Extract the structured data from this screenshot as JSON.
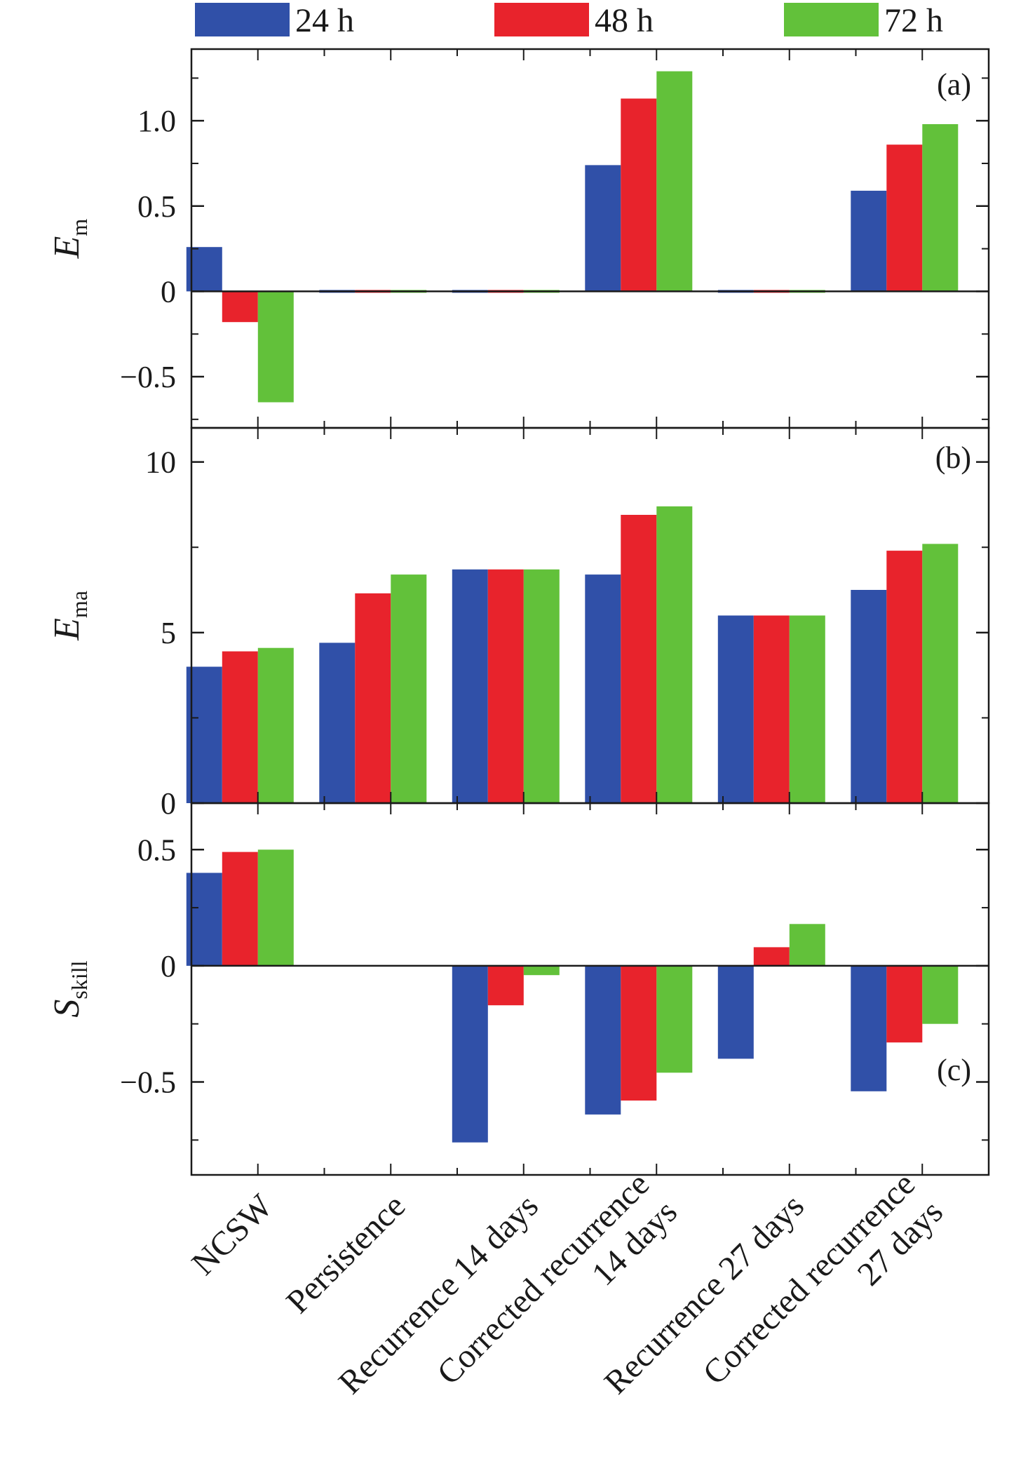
{
  "chart_data": {
    "type": "bar",
    "categories": [
      [
        "NCSW"
      ],
      [
        "Persistence"
      ],
      [
        "Recurrence 14 days"
      ],
      [
        "Corrected recurrence",
        "14 days"
      ],
      [
        "Recurrence 27 days"
      ],
      [
        "Corrected recurrence",
        "27 days"
      ]
    ],
    "legend": [
      {
        "name": "24 h",
        "color": "#3050a8"
      },
      {
        "name": "48 h",
        "color": "#e8232c"
      },
      {
        "name": "72 h",
        "color": "#62c13a"
      }
    ],
    "panels": [
      {
        "id": "a",
        "tag": "(a)",
        "ylabel_main": "E",
        "ylabel_sub": "m",
        "ylim": [
          -0.8,
          1.42
        ],
        "yticks": [
          -0.5,
          0,
          0.5,
          1.0
        ],
        "ytick_labels": [
          "−0.5",
          "0",
          "0.5",
          "1.0"
        ],
        "zero_line": true,
        "series": [
          {
            "name": "24 h",
            "values": [
              0.26,
              -0.01,
              -0.015,
              0.74,
              -0.005,
              0.59
            ]
          },
          {
            "name": "48 h",
            "values": [
              -0.18,
              -0.01,
              -0.015,
              1.13,
              -0.005,
              0.86
            ]
          },
          {
            "name": "72 h",
            "values": [
              -0.65,
              -0.01,
              -0.015,
              1.29,
              -0.005,
              0.98
            ]
          }
        ]
      },
      {
        "id": "b",
        "tag": "(b)",
        "ylabel_main": "E",
        "ylabel_sub": "ma",
        "ylim": [
          0,
          11
        ],
        "yticks": [
          0,
          5,
          10
        ],
        "ytick_labels": [
          "0",
          "5",
          "10"
        ],
        "zero_line": false,
        "series": [
          {
            "name": "24 h",
            "values": [
              4.0,
              4.7,
              6.85,
              6.7,
              5.5,
              6.25
            ]
          },
          {
            "name": "48 h",
            "values": [
              4.45,
              6.15,
              6.85,
              8.45,
              5.5,
              7.4
            ]
          },
          {
            "name": "72 h",
            "values": [
              4.55,
              6.7,
              6.85,
              8.7,
              5.5,
              7.6
            ]
          }
        ]
      },
      {
        "id": "c",
        "tag": "(c)",
        "ylabel_main": "S",
        "ylabel_sub": "skill",
        "ylim": [
          -0.9,
          0.7
        ],
        "yticks": [
          -0.5,
          0,
          0.5
        ],
        "ytick_labels": [
          "−0.5",
          "0",
          "0.5"
        ],
        "zero_line": true,
        "series": [
          {
            "name": "24 h",
            "values": [
              0.4,
              0.0,
              -0.76,
              -0.64,
              -0.4,
              -0.54
            ]
          },
          {
            "name": "48 h",
            "values": [
              0.49,
              0.0,
              -0.17,
              -0.58,
              0.08,
              -0.33
            ]
          },
          {
            "name": "72 h",
            "values": [
              0.5,
              0.0,
              -0.04,
              -0.46,
              0.18,
              -0.25
            ]
          }
        ]
      }
    ]
  }
}
